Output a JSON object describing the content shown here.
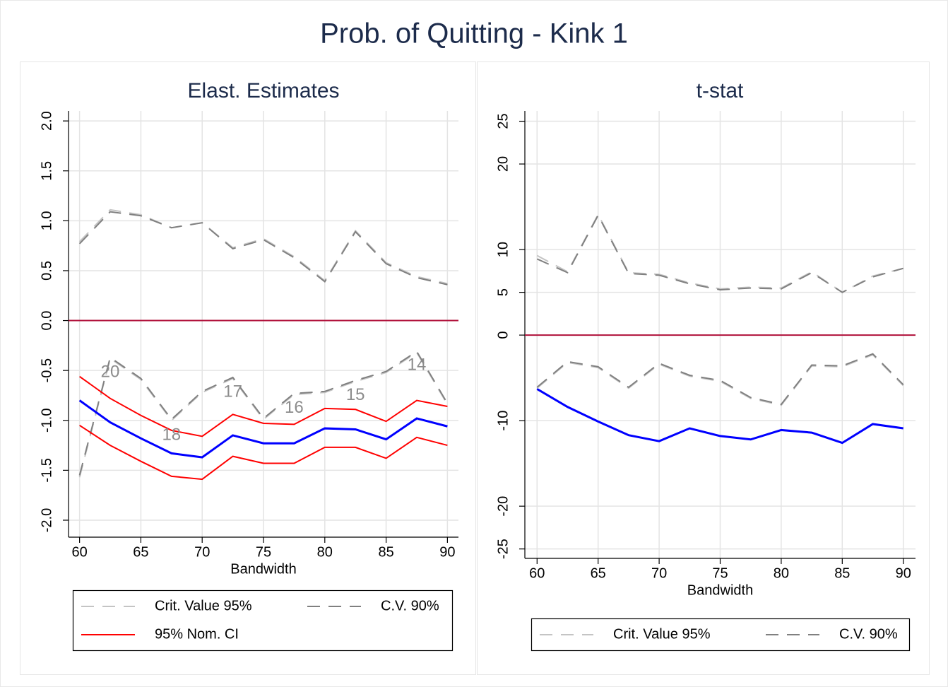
{
  "title": "Prob. of Quitting - Kink 1",
  "chart_data": [
    {
      "type": "line",
      "title": "Elast. Estimates",
      "x_label": "Bandwidth",
      "x": [
        60,
        62.5,
        65,
        67.5,
        70,
        72.5,
        75,
        77.5,
        80,
        82.5,
        85,
        87.5,
        90
      ],
      "xlim": [
        59.1,
        90.9
      ],
      "xticks": [
        60,
        65,
        70,
        75,
        80,
        85,
        90
      ],
      "ylim": [
        -2.17,
        2.1
      ],
      "yticks": [
        {
          "value": -2,
          "label": "-2.0"
        },
        -1.5,
        {
          "value": -1,
          "label": "-1.0"
        },
        -0.5,
        {
          "value": 0,
          "label": "0.0"
        },
        0.5,
        {
          "value": 1,
          "label": "1.0"
        },
        1.5,
        {
          "value": 2,
          "label": "2.0"
        }
      ],
      "grid": true,
      "refline": 0,
      "refline_color": "#b0103a",
      "legend": "bottom",
      "series": [
        {
          "name": "Crit. Value 95%",
          "color": "#c4c4c4",
          "dashed": true,
          "upper": [
            0.79,
            1.11,
            1.06,
            0.93,
            0.98,
            0.73,
            0.82,
            0.64,
            0.4,
            0.9,
            0.58,
            0.44,
            0.37
          ],
          "lower": [
            -1.57,
            -0.38,
            -0.59,
            -1.0,
            -0.72,
            -0.58,
            -0.99,
            -0.74,
            -0.72,
            -0.61,
            -0.52,
            -0.32,
            -0.84
          ]
        },
        {
          "name": "C.V. 90%",
          "color": "#808080",
          "dashed": true,
          "upper": [
            0.77,
            1.09,
            1.05,
            0.93,
            0.98,
            0.72,
            0.81,
            0.63,
            0.39,
            0.89,
            0.57,
            0.43,
            0.36
          ],
          "lower": [
            -1.55,
            -0.37,
            -0.58,
            -0.99,
            -0.71,
            -0.57,
            -0.98,
            -0.73,
            -0.71,
            -0.6,
            -0.51,
            -0.31,
            -0.83
          ]
        },
        {
          "name": "95% Nom. CI",
          "color": "#ff0000",
          "dashed": false,
          "upper": [
            -0.56,
            -0.78,
            -0.95,
            -1.1,
            -1.16,
            -0.94,
            -1.03,
            -1.04,
            -0.88,
            -0.89,
            -1.01,
            -0.8,
            -0.86
          ],
          "lower": [
            -1.05,
            -1.25,
            -1.41,
            -1.56,
            -1.59,
            -1.36,
            -1.43,
            -1.43,
            -1.27,
            -1.27,
            -1.38,
            -1.17,
            -1.25
          ]
        },
        {
          "color": "#0000ff",
          "dashed": false,
          "values": [
            -0.8,
            -1.02,
            -1.18,
            -1.33,
            -1.37,
            -1.15,
            -1.23,
            -1.23,
            -1.08,
            -1.09,
            -1.19,
            -0.98,
            -1.06
          ]
        }
      ],
      "annotations": [
        {
          "text": "20",
          "x": 62.5,
          "y": -0.52
        },
        {
          "text": "18",
          "x": 67.5,
          "y": -1.15
        },
        {
          "text": "17",
          "x": 72.5,
          "y": -0.72
        },
        {
          "text": "16",
          "x": 77.5,
          "y": -0.88
        },
        {
          "text": "15",
          "x": 82.5,
          "y": -0.75
        },
        {
          "text": "14",
          "x": 87.5,
          "y": -0.45
        }
      ]
    },
    {
      "type": "line",
      "title": "t-stat",
      "x_label": "Bandwidth",
      "x": [
        60,
        62.5,
        65,
        67.5,
        70,
        72.5,
        75,
        77.5,
        80,
        82.5,
        85,
        87.5,
        90
      ],
      "xlim": [
        59.0,
        91.0
      ],
      "xticks": [
        60,
        65,
        70,
        75,
        80,
        85,
        90
      ],
      "ylim": [
        -26.1,
        26.2
      ],
      "yticks": [
        -25,
        -20,
        -10,
        0,
        5,
        10,
        20,
        25
      ],
      "grid": true,
      "refline": 0,
      "refline_color": "#b0103a",
      "legend": "bottom",
      "series": [
        {
          "name": "Crit. Value 95%",
          "color": "#c4c4c4",
          "dashed": true,
          "upper": [
            9.3,
            7.4,
            14.1,
            7.3,
            7.1,
            6.1,
            5.4,
            5.6,
            5.5,
            7.4,
            5.0,
            6.9,
            7.8
          ],
          "lower": [
            -6.2,
            -3.2,
            -3.8,
            -6.2,
            -3.4,
            -4.8,
            -5.4,
            -7.4,
            -8.2,
            -3.6,
            -3.7,
            -2.3,
            -5.9
          ]
        },
        {
          "name": "C.V. 90%",
          "color": "#808080",
          "dashed": true,
          "upper": [
            8.9,
            7.3,
            14.0,
            7.2,
            7.0,
            6.0,
            5.3,
            5.5,
            5.4,
            7.3,
            5.0,
            6.8,
            7.8
          ],
          "lower": [
            -6.1,
            -3.1,
            -3.7,
            -6.1,
            -3.3,
            -4.7,
            -5.3,
            -7.3,
            -8.1,
            -3.5,
            -3.6,
            -2.2,
            -5.8
          ]
        },
        {
          "color": "#0000ff",
          "dashed": false,
          "values": [
            -6.3,
            -8.4,
            -10.1,
            -11.7,
            -12.4,
            -10.9,
            -11.8,
            -12.2,
            -11.1,
            -11.4,
            -12.6,
            -10.4,
            -10.9
          ]
        }
      ]
    }
  ]
}
